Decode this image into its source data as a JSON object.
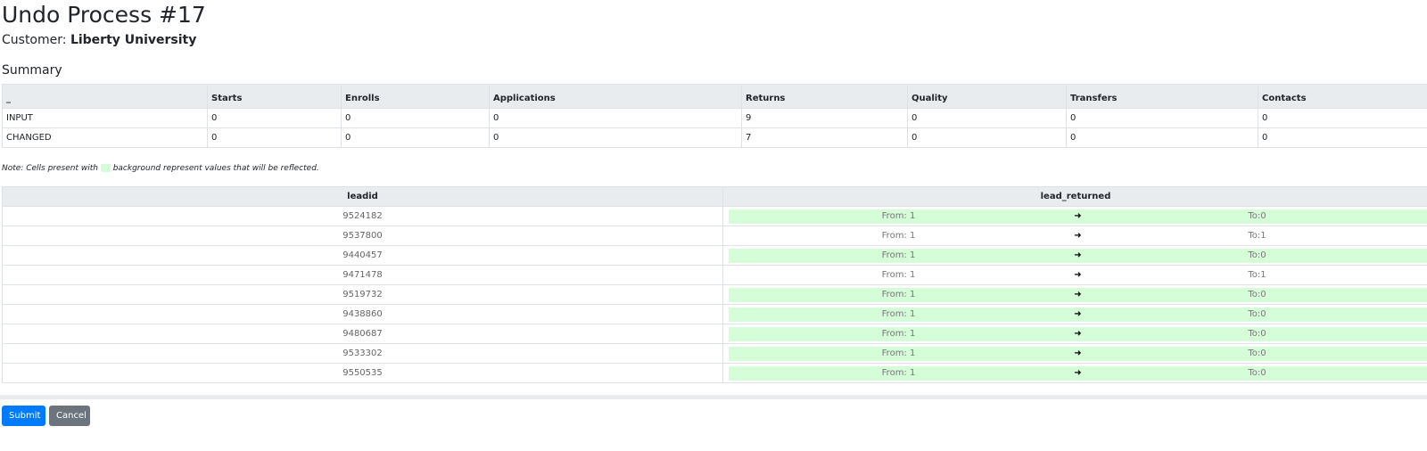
{
  "title": "Undo Process #17",
  "customer": {
    "label": "Customer:",
    "name": "Liberty University"
  },
  "summary": {
    "title": "Summary",
    "headers": [
      "_",
      "Starts",
      "Enrolls",
      "Applications",
      "Returns",
      "Quality",
      "Transfers",
      "Contacts"
    ],
    "rows": [
      [
        "INPUT",
        "0",
        "0",
        "0",
        "9",
        "0",
        "0",
        "0"
      ],
      [
        "CHANGED",
        "0",
        "0",
        "0",
        "7",
        "0",
        "0",
        "0"
      ]
    ]
  },
  "note": {
    "before": "Note: Cells present with",
    "after": "background represent values that will be reflected.",
    "highlight_color": "#d4fdd8"
  },
  "leads": {
    "headers": [
      "leadid",
      "lead_returned"
    ],
    "arrow_icon": "arrow-right-icon",
    "rows": [
      {
        "leadid": "9524182",
        "from": "From: 1",
        "to": "To:0",
        "changed": true
      },
      {
        "leadid": "9537800",
        "from": "From: 1",
        "to": "To:1",
        "changed": false
      },
      {
        "leadid": "9440457",
        "from": "From: 1",
        "to": "To:0",
        "changed": true
      },
      {
        "leadid": "9471478",
        "from": "From: 1",
        "to": "To:1",
        "changed": false
      },
      {
        "leadid": "9519732",
        "from": "From: 1",
        "to": "To:0",
        "changed": true
      },
      {
        "leadid": "9438860",
        "from": "From: 1",
        "to": "To:0",
        "changed": true
      },
      {
        "leadid": "9480687",
        "from": "From: 1",
        "to": "To:0",
        "changed": true
      },
      {
        "leadid": "9533302",
        "from": "From: 1",
        "to": "To:0",
        "changed": true
      },
      {
        "leadid": "9550535",
        "from": "From: 1",
        "to": "To:0",
        "changed": true
      }
    ]
  },
  "buttons": {
    "submit": "Submit",
    "cancel": "Cancel"
  }
}
